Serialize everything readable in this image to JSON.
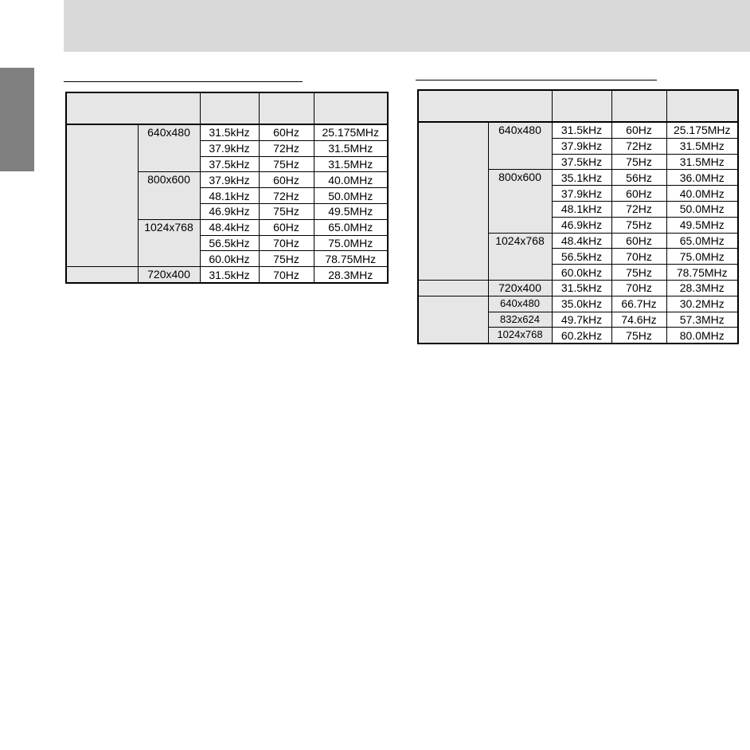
{
  "colors": {
    "header_band": "#d9d9d9",
    "side_tab": "#808080",
    "group_cell": "#e6e6e6"
  },
  "tables": [
    {
      "groups": [
        {
          "modes": [
            {
              "resolution": "640x480",
              "rows": [
                [
                  "31.5kHz",
                  "60Hz",
                  "25.175MHz"
                ],
                [
                  "37.9kHz",
                  "72Hz",
                  "31.5MHz"
                ],
                [
                  "37.5kHz",
                  "75Hz",
                  "31.5MHz"
                ]
              ]
            },
            {
              "resolution": "800x600",
              "rows": [
                [
                  "37.9kHz",
                  "60Hz",
                  "40.0MHz"
                ],
                [
                  "48.1kHz",
                  "72Hz",
                  "50.0MHz"
                ],
                [
                  "46.9kHz",
                  "75Hz",
                  "49.5MHz"
                ]
              ]
            },
            {
              "resolution": "1024x768",
              "rows": [
                [
                  "48.4kHz",
                  "60Hz",
                  "65.0MHz"
                ],
                [
                  "56.5kHz",
                  "70Hz",
                  "75.0MHz"
                ],
                [
                  "60.0kHz",
                  "75Hz",
                  "78.75MHz"
                ]
              ]
            }
          ]
        },
        {
          "modes": [
            {
              "resolution": "720x400",
              "rows": [
                [
                  "31.5kHz",
                  "70Hz",
                  "28.3MHz"
                ]
              ]
            }
          ]
        }
      ]
    },
    {
      "groups": [
        {
          "modes": [
            {
              "resolution": "640x480",
              "rows": [
                [
                  "31.5kHz",
                  "60Hz",
                  "25.175MHz"
                ],
                [
                  "37.9kHz",
                  "72Hz",
                  "31.5MHz"
                ],
                [
                  "37.5kHz",
                  "75Hz",
                  "31.5MHz"
                ]
              ]
            },
            {
              "resolution": "800x600",
              "rows": [
                [
                  "35.1kHz",
                  "56Hz",
                  "36.0MHz"
                ],
                [
                  "37.9kHz",
                  "60Hz",
                  "40.0MHz"
                ],
                [
                  "48.1kHz",
                  "72Hz",
                  "50.0MHz"
                ],
                [
                  "46.9kHz",
                  "75Hz",
                  "49.5MHz"
                ]
              ]
            },
            {
              "resolution": "1024x768",
              "rows": [
                [
                  "48.4kHz",
                  "60Hz",
                  "65.0MHz"
                ],
                [
                  "56.5kHz",
                  "70Hz",
                  "75.0MHz"
                ],
                [
                  "60.0kHz",
                  "75Hz",
                  "78.75MHz"
                ]
              ]
            }
          ]
        },
        {
          "modes": [
            {
              "resolution": "720x400",
              "rows": [
                [
                  "31.5kHz",
                  "70Hz",
                  "28.3MHz"
                ]
              ]
            }
          ]
        },
        {
          "modes": [
            {
              "resolution": "640x480",
              "rows": [
                [
                  "35.0kHz",
                  "66.7Hz",
                  "30.2MHz"
                ]
              ]
            },
            {
              "resolution": "832x624",
              "rows": [
                [
                  "49.7kHz",
                  "74.6Hz",
                  "57.3MHz"
                ]
              ]
            },
            {
              "resolution": "1024x768",
              "rows": [
                [
                  "60.2kHz",
                  "75Hz",
                  "80.0MHz"
                ]
              ]
            }
          ]
        }
      ]
    }
  ]
}
